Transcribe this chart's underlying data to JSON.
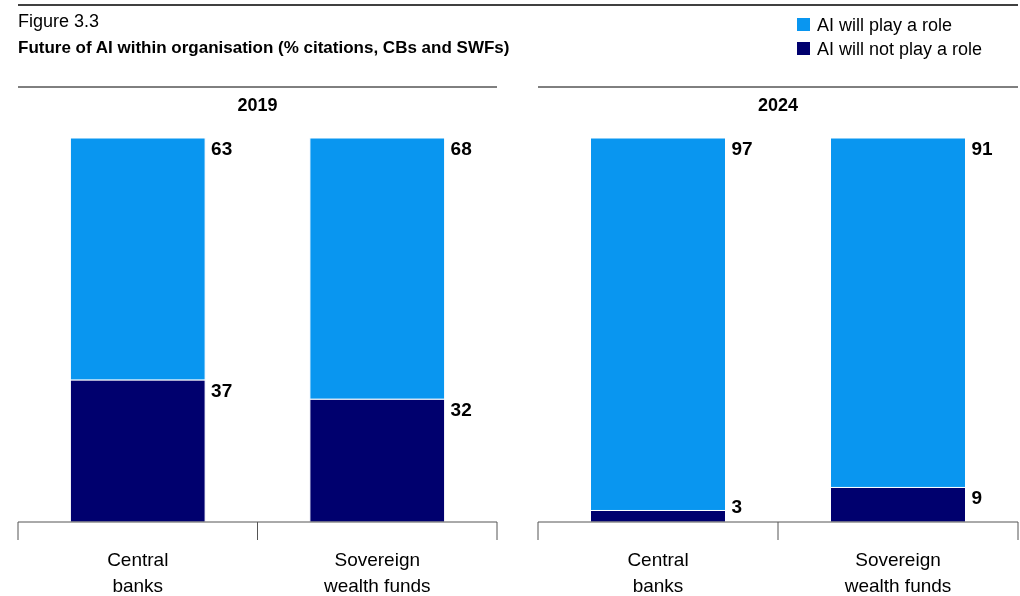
{
  "chart_data": [
    {
      "type": "bar",
      "title": "2019",
      "annotations": [
        "Figure 3.3",
        "Future of AI within organisation (% citations, CBs and SWFs)"
      ],
      "categories": [
        "Central banks",
        "Sovereign wealth funds"
      ],
      "stacked": true,
      "ylim": [
        0,
        100
      ],
      "tick_labels": "x",
      "data_labels": true,
      "legend": "top right",
      "series": [
        {
          "name": "AI will not play a role",
          "color": "#00006e",
          "values": [
            37,
            32
          ]
        },
        {
          "name": "AI will play a role",
          "color": "#0996f0",
          "values": [
            63,
            68
          ]
        }
      ]
    },
    {
      "type": "bar",
      "title": "2024",
      "categories": [
        "Central banks",
        "Sovereign wealth funds"
      ],
      "stacked": true,
      "ylim": [
        0,
        100
      ],
      "tick_labels": "x",
      "data_labels": true,
      "series": [
        {
          "color": "#00006e",
          "values": [
            3,
            9
          ]
        },
        {
          "color": "#0996f0",
          "values": [
            97,
            91
          ]
        }
      ]
    }
  ]
}
